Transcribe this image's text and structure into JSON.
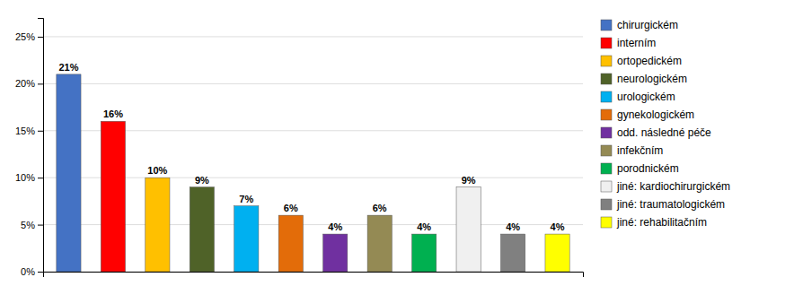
{
  "chart_data": {
    "type": "bar",
    "categories": [
      "chirurgickém",
      "interním",
      "ortopedickém",
      "neurologickém",
      "urologickém",
      "gynekologickém",
      "odd. následné péče",
      "infekčním",
      "porodnickém",
      "jiné: kardiochirurgickém",
      "jiné: traumatologickém",
      "jiné: rehabilitačním"
    ],
    "values": [
      21,
      16,
      10,
      9,
      7,
      6,
      4,
      6,
      4,
      9,
      4,
      4
    ],
    "value_labels": [
      "21%",
      "16%",
      "10%",
      "9%",
      "7%",
      "6%",
      "4%",
      "6%",
      "4%",
      "9%",
      "4%",
      "4%"
    ],
    "colors": [
      "#4472C4",
      "#FF0000",
      "#FFC000",
      "#4F6228",
      "#00B0F0",
      "#E36C09",
      "#7030A0",
      "#948A54",
      "#00B050",
      "#F0F0F0",
      "#808080",
      "#FFFF00"
    ],
    "ylim": [
      0,
      27
    ],
    "yticks": [
      {
        "value": 0,
        "label": "0%"
      },
      {
        "value": 5,
        "label": "5%"
      },
      {
        "value": 10,
        "label": "10%"
      },
      {
        "value": 15,
        "label": "15%"
      },
      {
        "value": 20,
        "label": "20%"
      },
      {
        "value": 25,
        "label": "25%"
      }
    ],
    "grid": true,
    "data_labels": true,
    "tick_labels": "y",
    "legend": "right"
  }
}
